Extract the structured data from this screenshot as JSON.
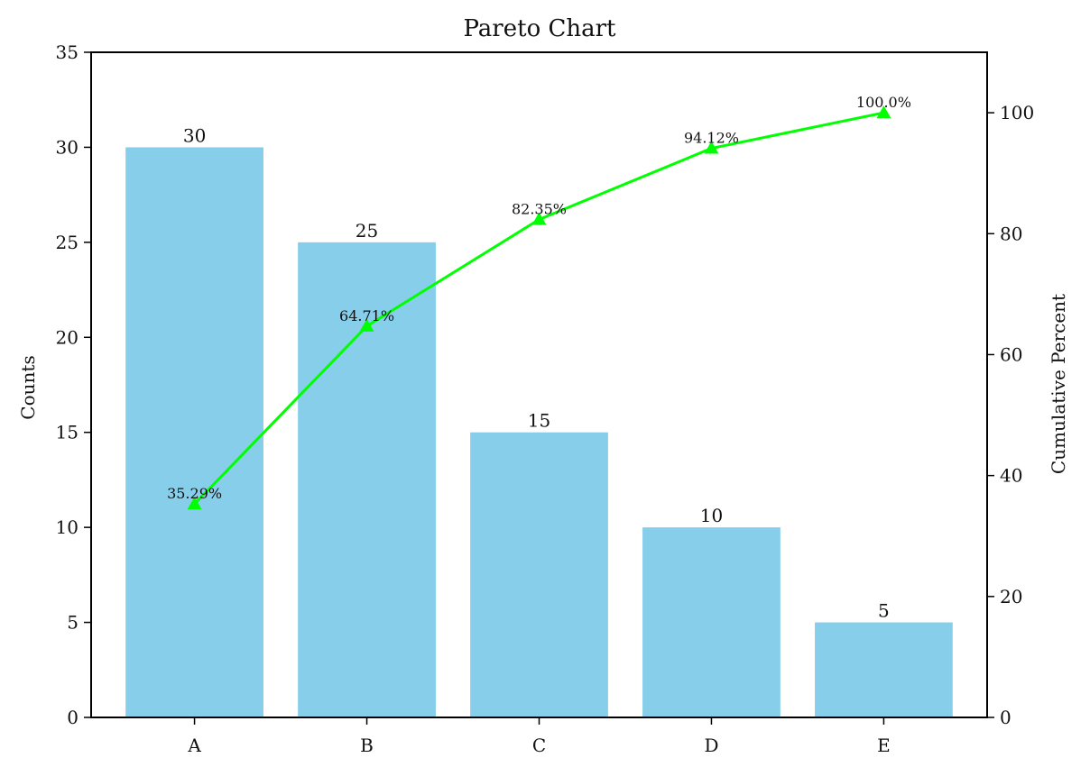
{
  "chart_data": {
    "type": "bar",
    "title": "Pareto Chart",
    "categories": [
      "A",
      "B",
      "C",
      "D",
      "E"
    ],
    "series": [
      {
        "type": "bar",
        "axis": "left",
        "values": [
          30,
          25,
          15,
          10,
          5
        ],
        "color": "#87CEEB"
      },
      {
        "type": "line",
        "axis": "right",
        "values": [
          35.29,
          64.71,
          82.35,
          94.12,
          100.0
        ],
        "value_labels": [
          "35.29%",
          "64.71%",
          "82.35%",
          "94.12%",
          "100.0%"
        ],
        "color": "#00FF00",
        "marker": "triangle-up"
      }
    ],
    "ylabel": "Counts",
    "y2label": "Cumulative Percent",
    "ylim": [
      0,
      35
    ],
    "y2lim": [
      0,
      110
    ],
    "yticks": [
      0,
      5,
      10,
      15,
      20,
      25,
      30,
      35
    ],
    "y2ticks": [
      0,
      20,
      40,
      60,
      80,
      100
    ],
    "grid": false,
    "legend": "none"
  }
}
